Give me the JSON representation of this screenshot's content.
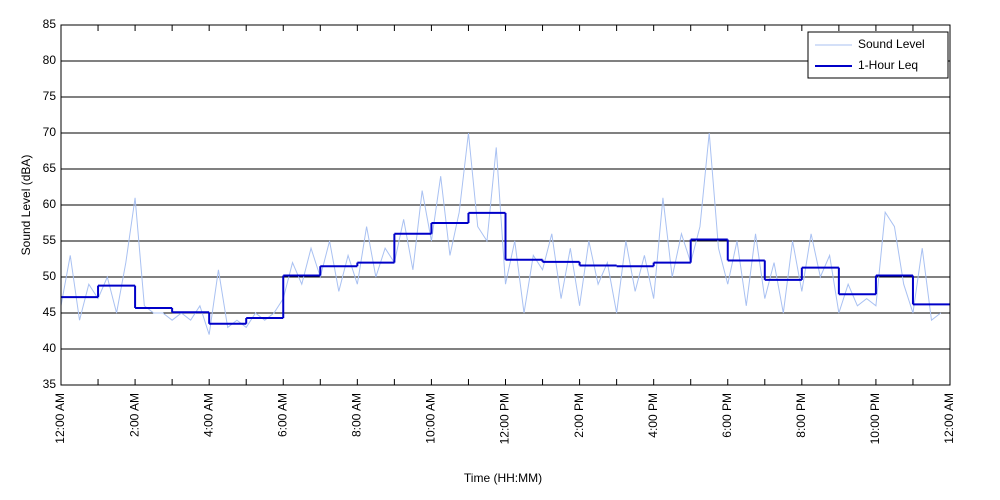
{
  "chart_data": {
    "type": "line",
    "xlabel": "Time (HH:MM)",
    "ylabel": "Sound Level (dBA)",
    "xlim": [
      0,
      24
    ],
    "ylim": [
      35,
      85
    ],
    "xticks": [
      {
        "value": 0,
        "label": "12:00 AM"
      },
      {
        "value": 2,
        "label": "2:00 AM"
      },
      {
        "value": 4,
        "label": "4:00 AM"
      },
      {
        "value": 6,
        "label": "6:00 AM"
      },
      {
        "value": 8,
        "label": "8:00 AM"
      },
      {
        "value": 10,
        "label": "10:00 AM"
      },
      {
        "value": 12,
        "label": "12:00 PM"
      },
      {
        "value": 14,
        "label": "2:00 PM"
      },
      {
        "value": 16,
        "label": "4:00 PM"
      },
      {
        "value": 18,
        "label": "6:00 PM"
      },
      {
        "value": 20,
        "label": "8:00 PM"
      },
      {
        "value": 22,
        "label": "10:00 PM"
      },
      {
        "value": 24,
        "label": "12:00 AM"
      }
    ],
    "xminor_ticks": [
      1,
      3,
      5,
      7,
      9,
      11,
      13,
      15,
      17,
      19,
      21,
      23
    ],
    "yticks": [
      35,
      40,
      45,
      50,
      55,
      60,
      65,
      70,
      75,
      80,
      85
    ],
    "grid": true,
    "legend": "upper right",
    "series": [
      {
        "name": "Sound Level",
        "color": "#a9c1f2",
        "style": "line",
        "x": [
          0,
          0.25,
          0.5,
          0.75,
          1,
          1.25,
          1.5,
          1.75,
          2,
          2.25,
          2.5,
          2.75,
          3,
          3.25,
          3.5,
          3.75,
          4,
          4.25,
          4.5,
          4.75,
          5,
          5.25,
          5.5,
          5.75,
          6,
          6.25,
          6.5,
          6.75,
          7,
          7.25,
          7.5,
          7.75,
          8,
          8.25,
          8.5,
          8.75,
          9,
          9.25,
          9.5,
          9.75,
          10,
          10.25,
          10.5,
          10.75,
          11,
          11.25,
          11.5,
          11.75,
          12,
          12.25,
          12.5,
          12.75,
          13,
          13.25,
          13.5,
          13.75,
          14,
          14.25,
          14.5,
          14.75,
          15,
          15.25,
          15.5,
          15.75,
          16,
          16.25,
          16.5,
          16.75,
          17,
          17.25,
          17.5,
          17.75,
          18,
          18.25,
          18.5,
          18.75,
          19,
          19.25,
          19.5,
          19.75,
          20,
          20.25,
          20.5,
          20.75,
          21,
          21.25,
          21.5,
          21.75,
          22,
          22.25,
          22.5,
          22.75,
          23,
          23.25,
          23.5,
          23.75
        ],
        "values": [
          46,
          53,
          44,
          49,
          47,
          50,
          45,
          52,
          61,
          46,
          45,
          45,
          44,
          45,
          44,
          46,
          42,
          51,
          43,
          44,
          43,
          45,
          44,
          45,
          47,
          52,
          49,
          54,
          50,
          55,
          48,
          53,
          49,
          57,
          50,
          54,
          52,
          58,
          51,
          62,
          55,
          64,
          53,
          59,
          70,
          57,
          55,
          68,
          49,
          55,
          45,
          53,
          51,
          56,
          47,
          54,
          46,
          55,
          49,
          52,
          45,
          55,
          48,
          53,
          47,
          61,
          50,
          56,
          52,
          57,
          70,
          54,
          49,
          55,
          46,
          56,
          47,
          52,
          45,
          55,
          48,
          56,
          50,
          53,
          45,
          49,
          46,
          47,
          46,
          59,
          57,
          49,
          45,
          54,
          44,
          45
        ]
      },
      {
        "name": "1-Hour Leq",
        "color": "#0000c8",
        "style": "step",
        "x": [
          0,
          1,
          2,
          3,
          4,
          5,
          6,
          7,
          8,
          9,
          10,
          11,
          12,
          13,
          14,
          15,
          16,
          17,
          18,
          19,
          20,
          21,
          22,
          23
        ],
        "values": [
          47.2,
          48.8,
          45.7,
          45.1,
          43.5,
          44.3,
          50.2,
          51.5,
          52.0,
          56.0,
          57.5,
          58.9,
          52.4,
          52.1,
          51.6,
          51.5,
          52.0,
          55.2,
          52.3,
          49.6,
          51.3,
          47.6,
          50.2,
          46.2
        ]
      }
    ]
  }
}
